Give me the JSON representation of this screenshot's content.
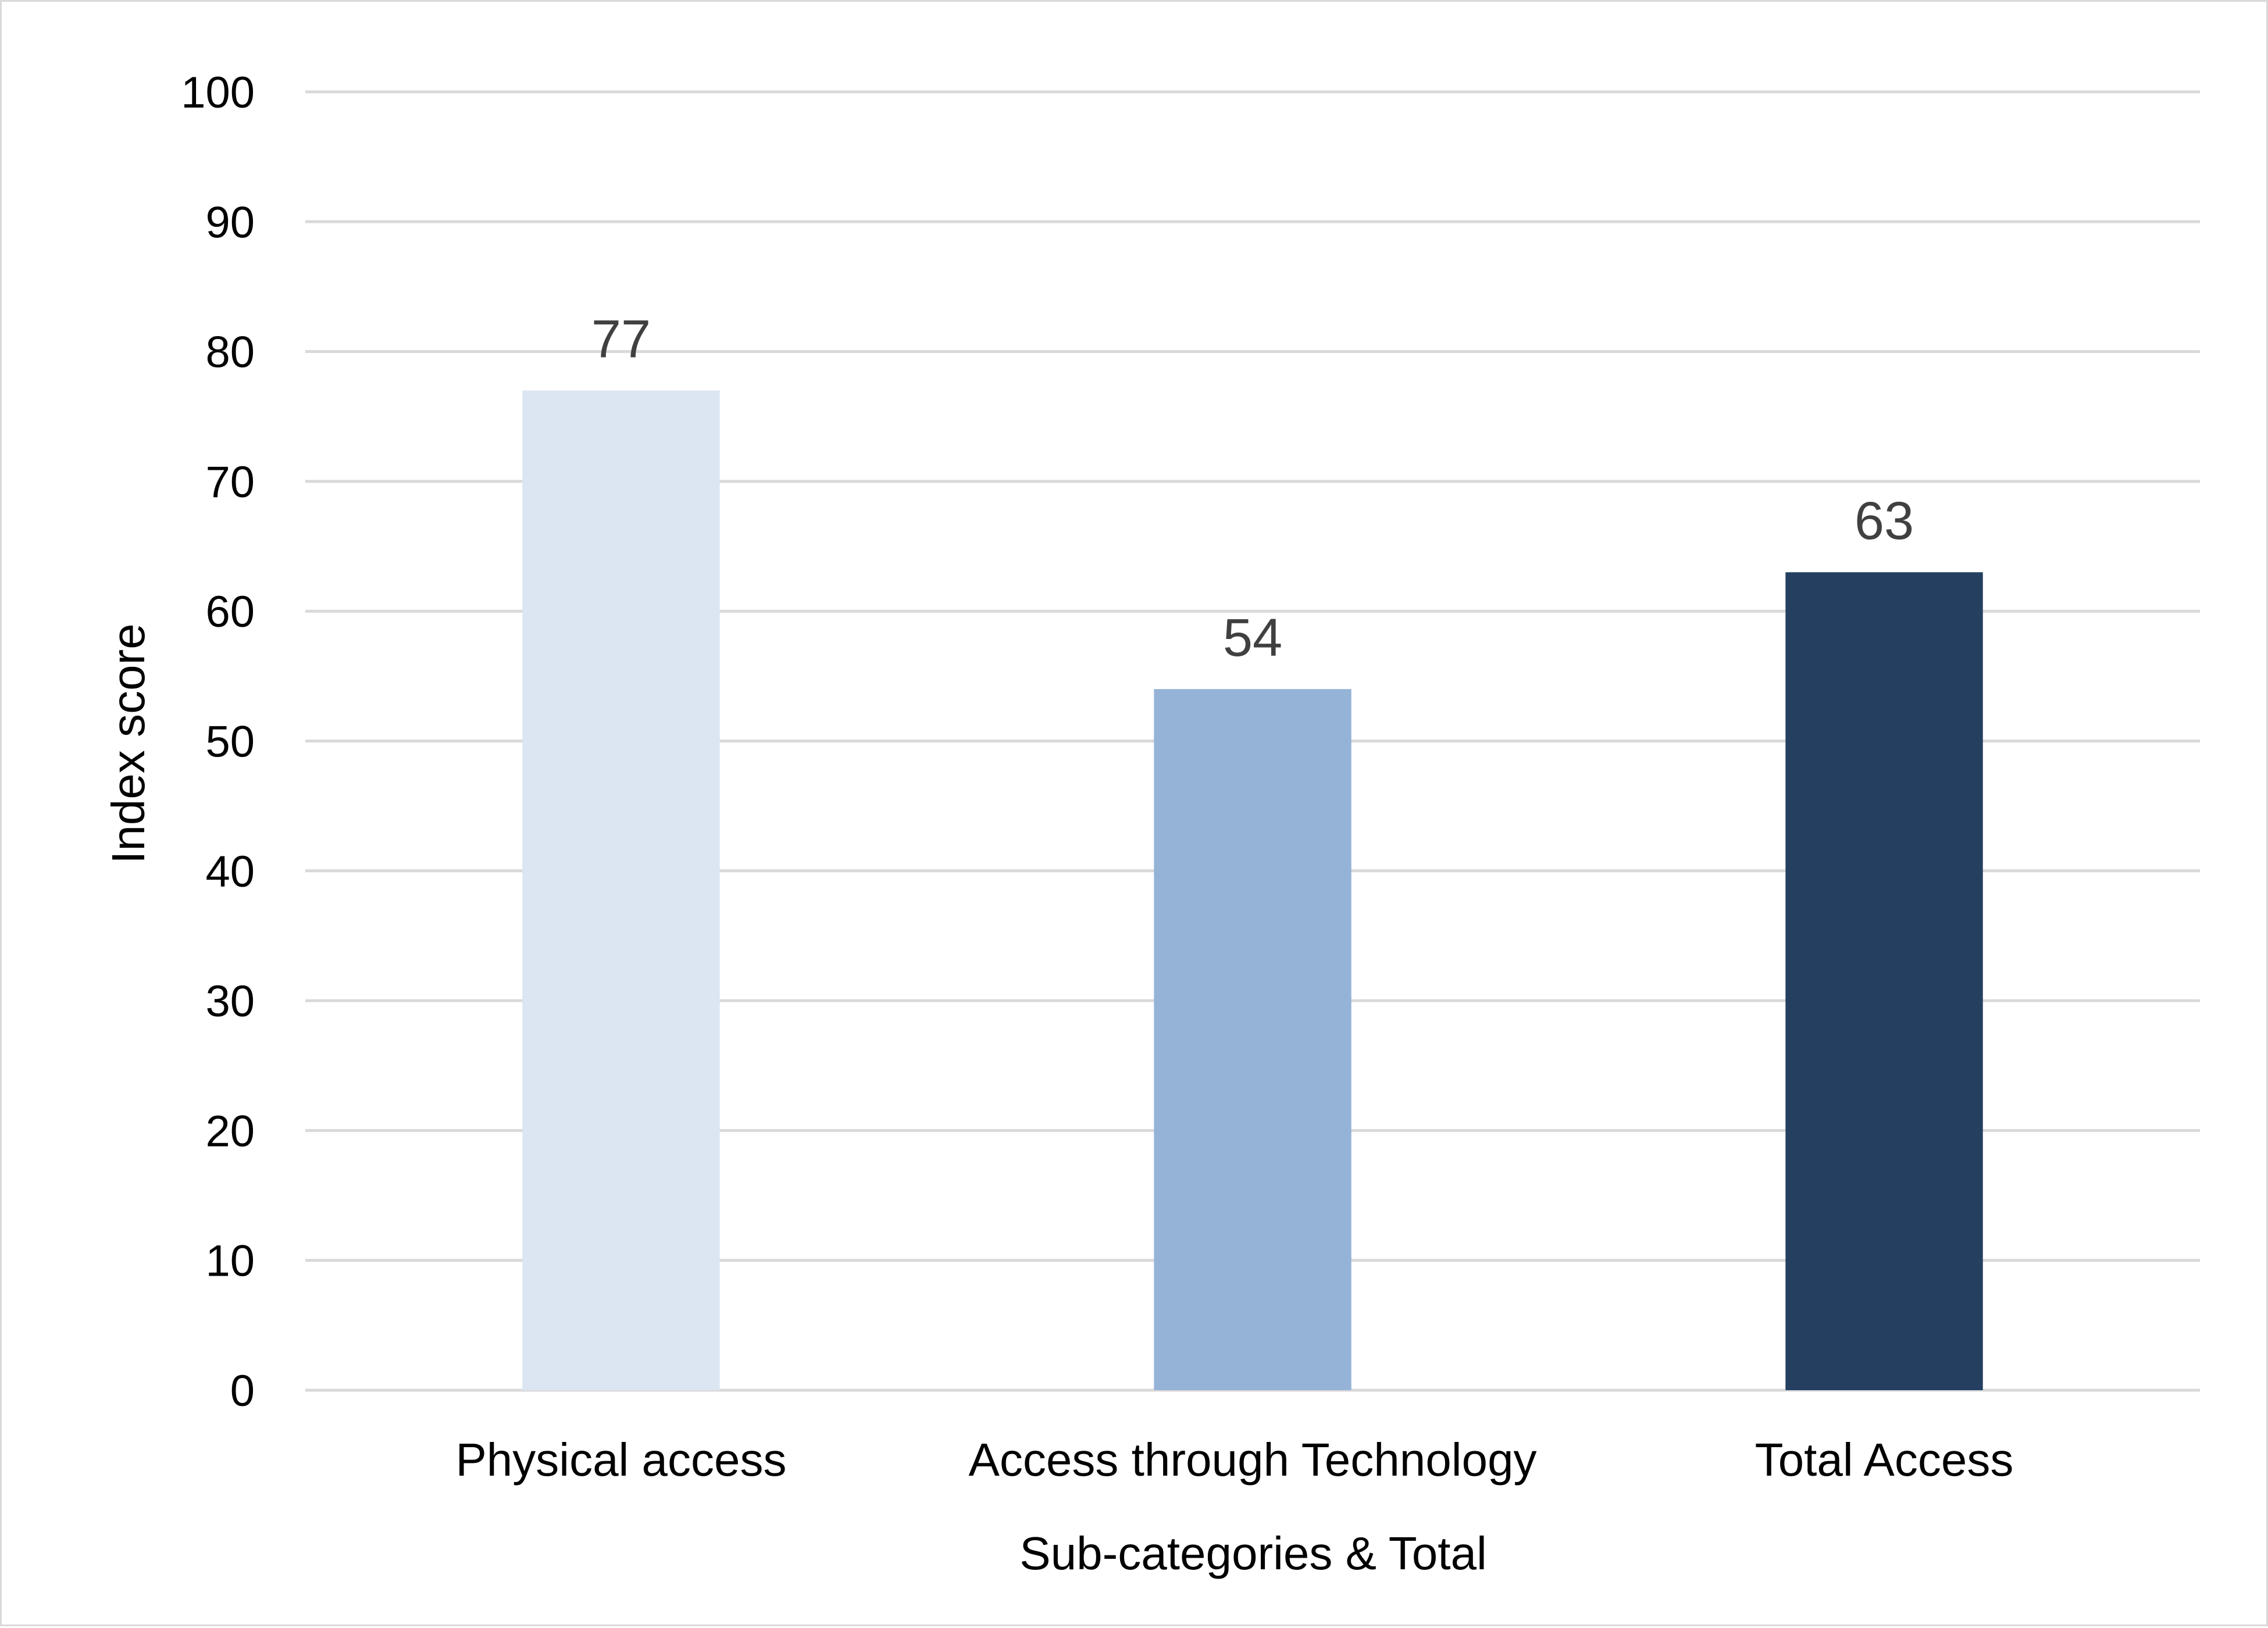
{
  "chart_data": {
    "type": "bar",
    "title": "",
    "xlabel": "Sub-categories & Total",
    "ylabel": "Index score",
    "categories": [
      "Physical access",
      "Access through Technology",
      "Total Access"
    ],
    "values": [
      77,
      54,
      63
    ],
    "data_labels": [
      "77",
      "54",
      "63"
    ],
    "bar_colors": [
      "#dce6f2",
      "#95b3d7",
      "#243f60"
    ],
    "ylim": [
      0,
      100
    ],
    "yticks": [
      0,
      10,
      20,
      30,
      40,
      50,
      60,
      70,
      80,
      90,
      100
    ],
    "grid": true,
    "legend": "none"
  }
}
